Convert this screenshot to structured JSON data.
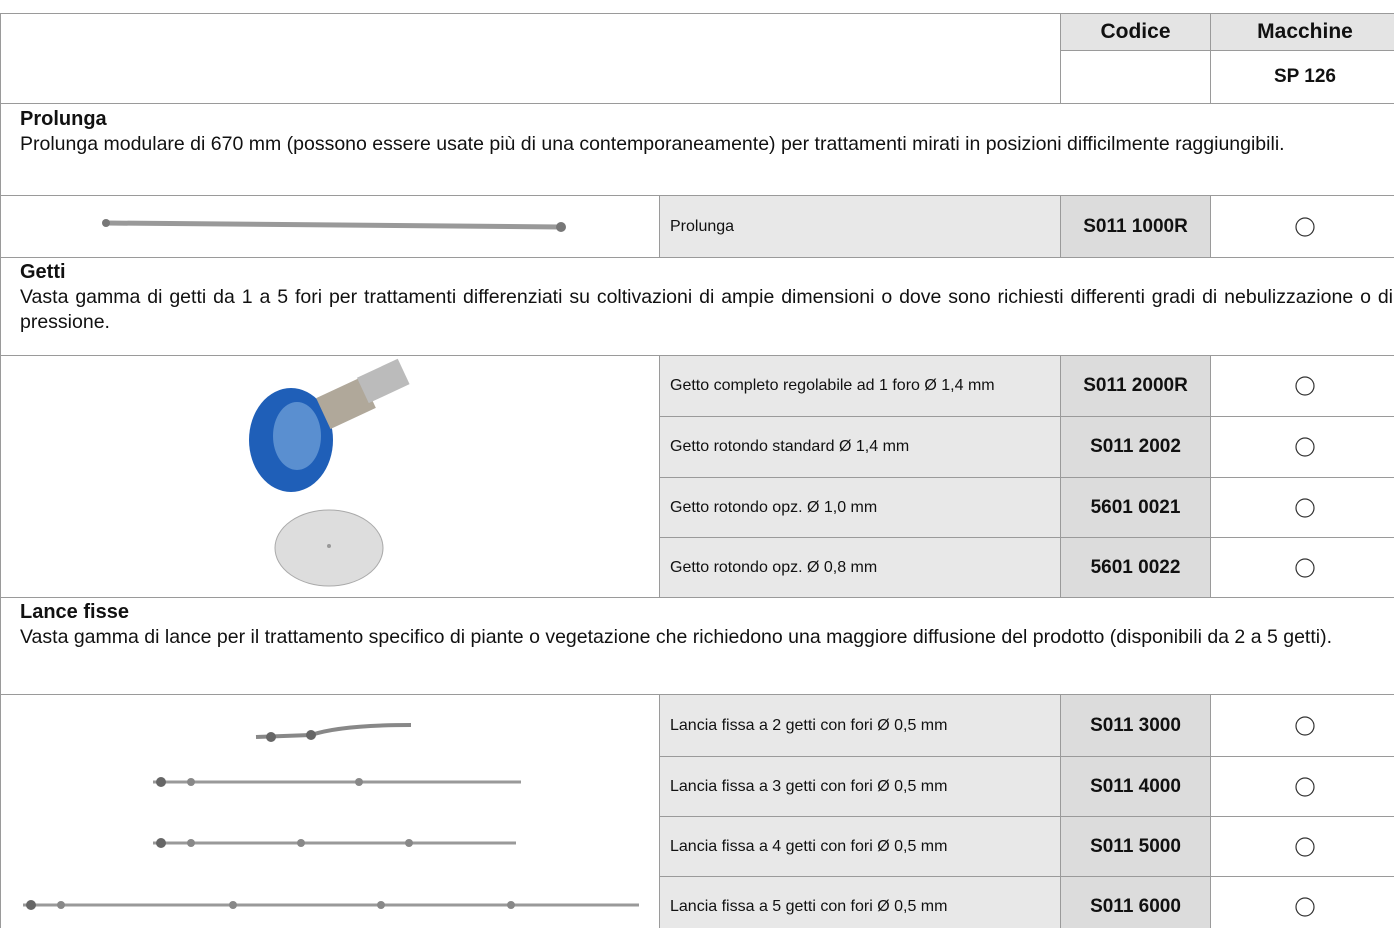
{
  "header": {
    "code_label": "Codice",
    "machines_label": "Macchine",
    "machine": "SP 126"
  },
  "sections": [
    {
      "title": "Prolunga",
      "description": "Prolunga modulare di 670 mm (possono essere usate più di una contemporaneamente) per trattamenti mirati in posizioni difficilmente raggiungibili.",
      "items": [
        {
          "description": "Prolunga",
          "code": "S011 1000R"
        }
      ]
    },
    {
      "title": "Getti",
      "description": "Vasta gamma di getti da 1 a 5 fori per trattamenti differenziati su coltivazioni di ampie dimensioni o dove sono richiesti differenti gradi di nebulizzazione o di pressione.",
      "items": [
        {
          "description": "Getto completo regolabile ad 1 foro Ø 1,4 mm",
          "code": "S011 2000R"
        },
        {
          "description": "Getto rotondo standard Ø 1,4 mm",
          "code": "S011 2002"
        },
        {
          "description": "Getto rotondo opz. Ø 1,0 mm",
          "code": "5601 0021"
        },
        {
          "description": "Getto rotondo opz. Ø 0,8 mm",
          "code": "5601 0022"
        }
      ]
    },
    {
      "title": "Lance fisse",
      "description": "Vasta gamma di lance per il trattamento specifico di piante o vegetazione che richiedono una maggiore diffusione del prodotto (disponibili da 2 a 5 getti).",
      "items": [
        {
          "description": "Lancia fissa a 2 getti con fori Ø 0,5 mm",
          "code": "S011 3000"
        },
        {
          "description": "Lancia fissa a 3 getti con fori Ø 0,5 mm",
          "code": "S011 4000"
        },
        {
          "description": "Lancia fissa a 4 getti con fori Ø 0,5 mm",
          "code": "S011 5000"
        },
        {
          "description": "Lancia fissa a 5 getti con fori Ø 0,5 mm",
          "code": "S011 6000"
        }
      ]
    }
  ]
}
